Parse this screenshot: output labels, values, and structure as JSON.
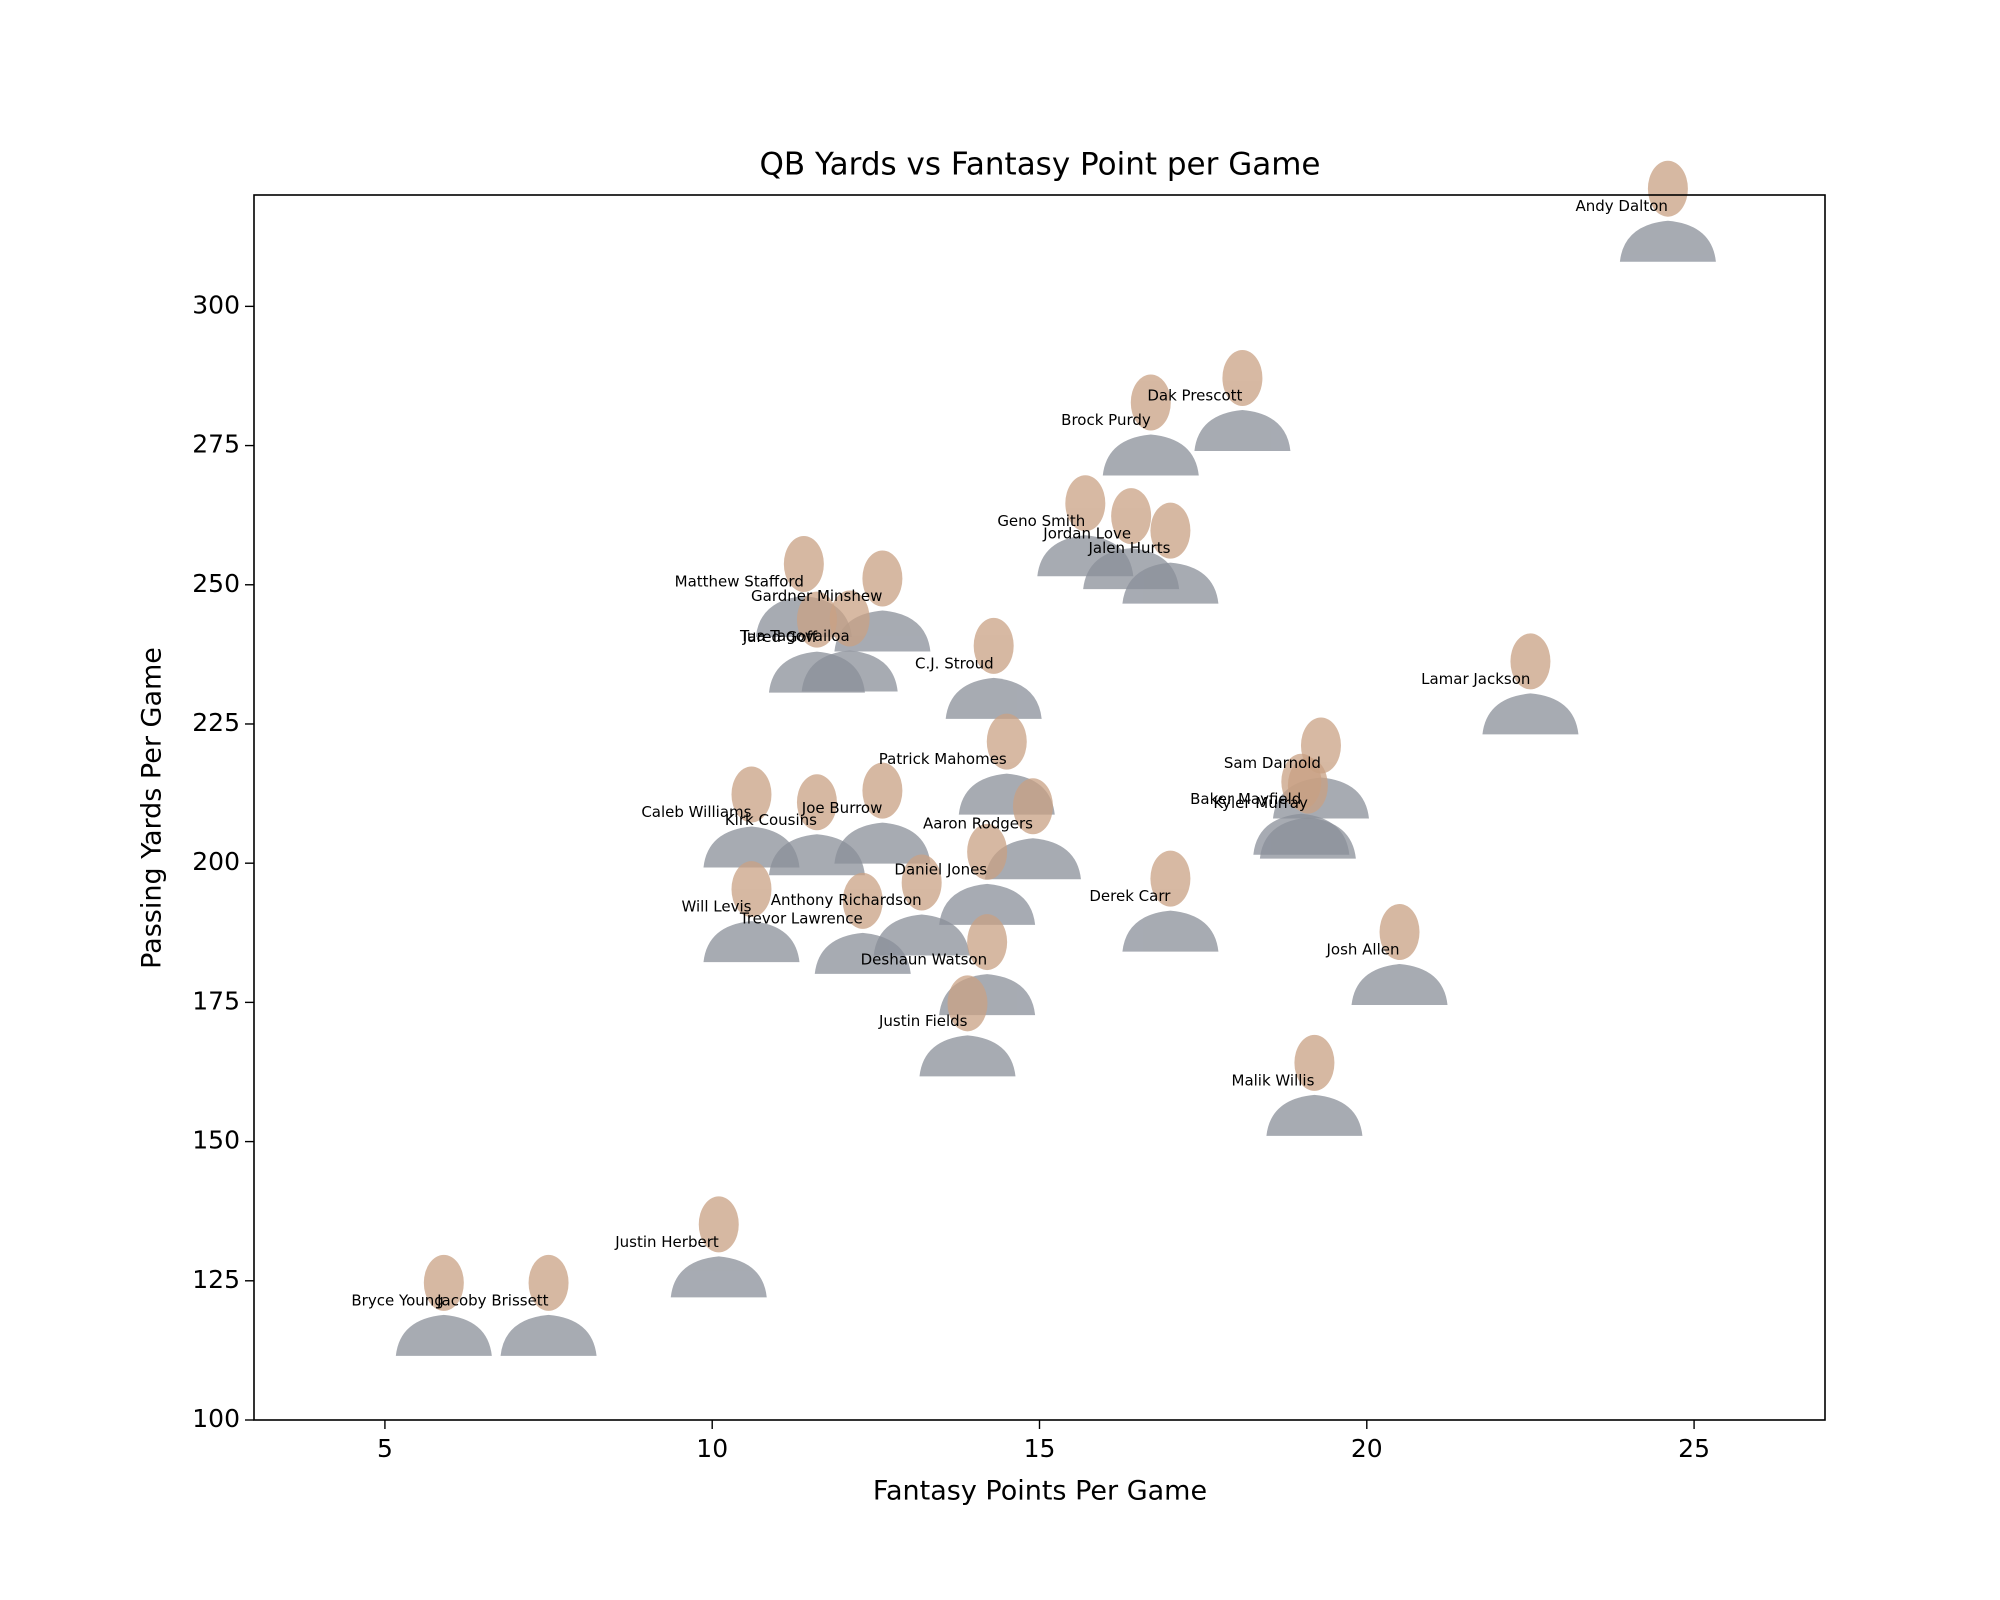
{
  "chart_data": {
    "type": "scatter",
    "title": "QB Yards vs Fantasy Point per Game",
    "x_label": "Fantasy Points Per Game",
    "y_label": "Passing Yards Per Game",
    "xlim": [
      3,
      27
    ],
    "ylim": [
      100,
      320
    ],
    "xticks": [
      5,
      10,
      15,
      20,
      25
    ],
    "yticks": [
      100,
      125,
      150,
      175,
      200,
      225,
      250,
      275,
      300
    ],
    "grid": false,
    "labels": [
      "Andy Dalton",
      "Dak Prescott",
      "Brock Purdy",
      "Geno Smith",
      "Jordan Love",
      "Jalen Hurts",
      "Matthew Stafford",
      "Gardner Minshew",
      "Tua Tagovailoa",
      "Jared Goff",
      "C.J. Stroud",
      "Lamar Jackson",
      "Patrick Mahomes",
      "Sam Darnold",
      "Baker Mayfield",
      "Kyler Murray",
      "Caleb Williams",
      "Kirk Cousins",
      "Joe Burrow",
      "Aaron Rodgers",
      "Daniel Jones",
      "Derek Carr",
      "Will Levis",
      "Anthony Richardson",
      "Trevor Lawrence",
      "Deshaun Watson",
      "Justin Fields",
      "Josh Allen",
      "Malik Willis",
      "Justin Herbert",
      "Bryce Young",
      "Jacoby Brissett"
    ],
    "x": [
      24.6,
      18.1,
      16.7,
      15.7,
      16.4,
      17.0,
      11.4,
      12.6,
      12.1,
      11.6,
      14.3,
      22.5,
      14.5,
      19.3,
      19.0,
      19.1,
      10.6,
      11.6,
      12.6,
      14.9,
      14.2,
      17.0,
      10.6,
      13.2,
      12.3,
      14.2,
      13.9,
      20.5,
      19.2,
      10.1,
      5.9,
      7.5
    ],
    "values": [
      317.9,
      283.9,
      279.5,
      261.4,
      259.1,
      256.5,
      250.5,
      247.9,
      240.7,
      240.5,
      235.8,
      233.0,
      218.6,
      217.9,
      211.4,
      210.7,
      209.1,
      207.7,
      209.8,
      207.0,
      198.8,
      194.0,
      192.1,
      193.3,
      190.0,
      182.6,
      171.6,
      184.4,
      160.9,
      131.9,
      121.4,
      121.4
    ],
    "color": "#8a8f99"
  }
}
